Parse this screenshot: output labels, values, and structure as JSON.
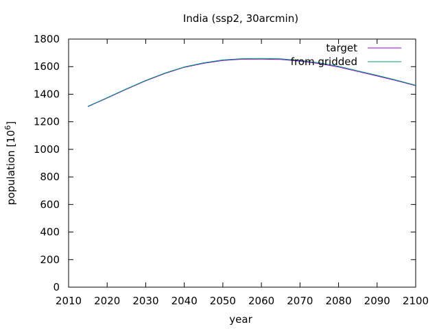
{
  "chart_data": {
    "type": "line",
    "title": "India (ssp2, 30arcmin)",
    "xlabel": "year",
    "ylabel": "population [10^6]",
    "ylabel_parts": {
      "base": "population [10",
      "exp": "6",
      "close": "]"
    },
    "xlim": [
      2010,
      2100
    ],
    "ylim": [
      0,
      1800
    ],
    "xticks": [
      2010,
      2020,
      2030,
      2040,
      2050,
      2060,
      2070,
      2080,
      2090,
      2100
    ],
    "yticks": [
      0,
      200,
      400,
      600,
      800,
      1000,
      1200,
      1400,
      1600,
      1800
    ],
    "grid": false,
    "legend": "top-right",
    "x": [
      2015,
      2020,
      2025,
      2030,
      2035,
      2040,
      2045,
      2050,
      2055,
      2060,
      2065,
      2070,
      2075,
      2080,
      2085,
      2090,
      2095,
      2100
    ],
    "series": [
      {
        "name": "target",
        "color": "#9400d3",
        "values": [
          1310,
          1372,
          1436,
          1497,
          1551,
          1595,
          1624,
          1645,
          1654,
          1655,
          1652,
          1640,
          1622,
          1597,
          1565,
          1532,
          1498,
          1462
        ]
      },
      {
        "name": "from gridded",
        "color": "#009e73",
        "values": [
          1312,
          1375,
          1439,
          1500,
          1554,
          1598,
          1628,
          1649,
          1658,
          1660,
          1657,
          1645,
          1628,
          1602,
          1570,
          1537,
          1502,
          1465
        ]
      }
    ]
  }
}
